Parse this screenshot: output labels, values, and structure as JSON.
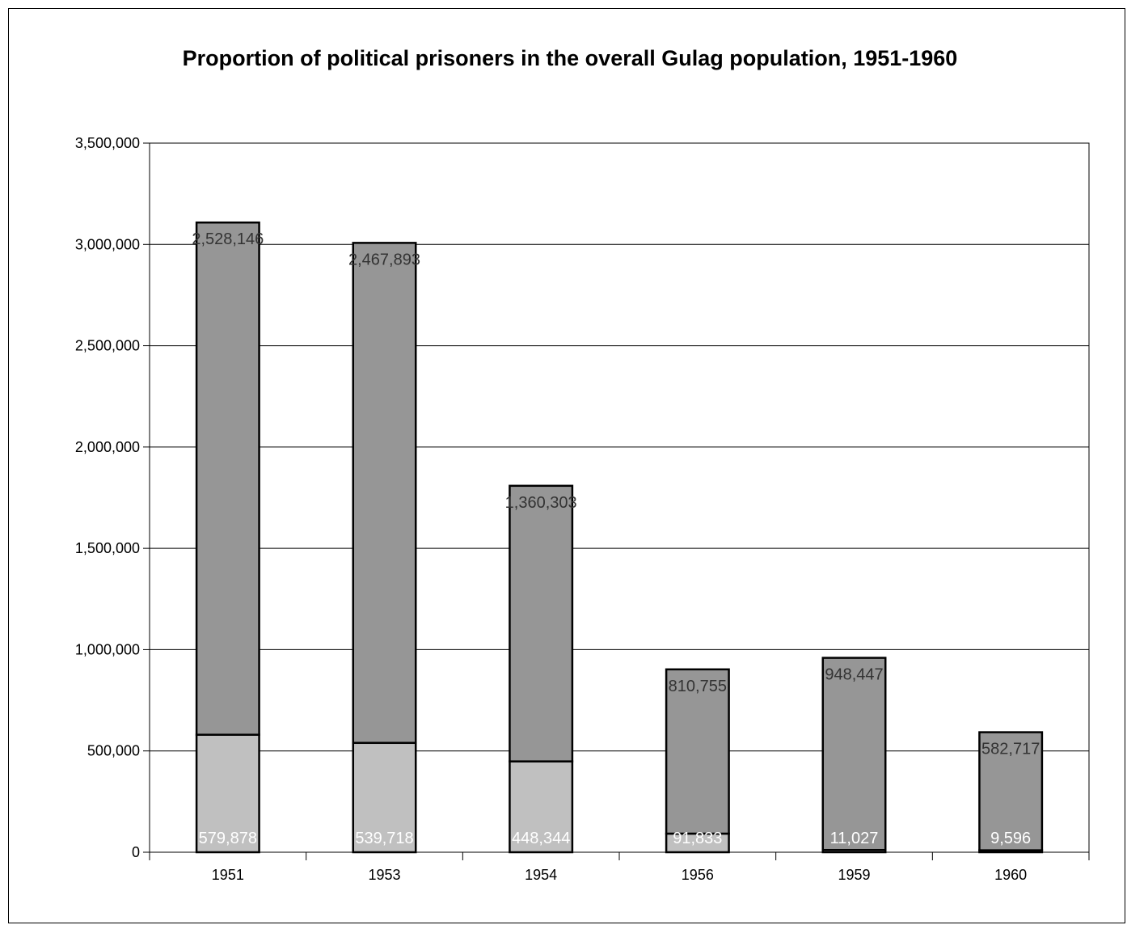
{
  "chart_data": {
    "type": "bar",
    "stacked": true,
    "title": "Proportion of political prisoners in the overall Gulag population, 1951-1960",
    "xlabel": "",
    "ylabel": "",
    "categories": [
      "1951",
      "1953",
      "1954",
      "1956",
      "1959",
      "1960"
    ],
    "ylim": [
      0,
      3500000
    ],
    "yticks": [
      0,
      500000,
      1000000,
      1500000,
      2000000,
      2500000,
      3000000,
      3500000
    ],
    "ytick_labels": [
      "0",
      "500,000",
      "1,000,000",
      "1,500,000",
      "2,000,000",
      "2,500,000",
      "3,000,000",
      "3,500,000"
    ],
    "grid": true,
    "legend": "none",
    "series": [
      {
        "values": [
          579878,
          539718,
          448344,
          91833,
          11027,
          9596
        ],
        "labels": [
          "579,878",
          "539,718",
          "448,344",
          "91,833",
          "11,027",
          "9,596"
        ],
        "color": "#c0c0c0",
        "label_color": "#ffffff"
      },
      {
        "values": [
          2528146,
          2467893,
          1360303,
          810755,
          948447,
          582717
        ],
        "labels": [
          "2,528,146",
          "2,467,893",
          "1,360,303",
          "810,755",
          "948,447",
          "582,717"
        ],
        "color": "#969696",
        "label_color": "#333333"
      }
    ]
  }
}
